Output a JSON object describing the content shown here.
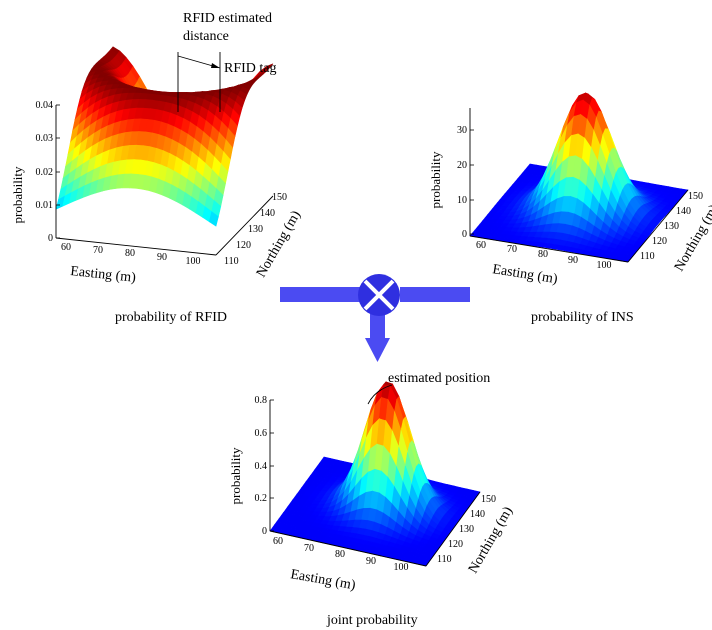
{
  "annotations": {
    "rfid_estimated_distance": [
      "RFID estimated",
      "distance"
    ],
    "rfid_tag": "RFID tag",
    "estimated_position": "estimated position"
  },
  "fusion": {
    "operator": "multiply (⊗)",
    "colors": {
      "pipe": "#4b4bf2",
      "operator_fill": "#2f2fe0",
      "operator_cross": "#ffffff"
    }
  },
  "colormap": "jet",
  "chart_data": [
    {
      "type": "surface",
      "caption": "probability of RFID",
      "xlabel": "Easting (m)",
      "ylabel": "Northing (m)",
      "zlabel": "probability",
      "x_ticks": [
        "60",
        "70",
        "80",
        "90",
        "100"
      ],
      "y_ticks": [
        "110",
        "120",
        "130",
        "140",
        "150"
      ],
      "z_ticks": [
        "0",
        "0.01",
        "0.02",
        "0.03",
        "0.04"
      ],
      "zlim": [
        0,
        0.04
      ],
      "shape": "ring",
      "peak_value": 0.04,
      "ring_center": {
        "easting": 80,
        "northing": 150
      },
      "ring_radius_m": 27
    },
    {
      "type": "surface",
      "caption": "probability of INS",
      "xlabel": "Easting (m)",
      "ylabel": "Northing (m)",
      "zlabel": "probability",
      "x_ticks": [
        "60",
        "70",
        "80",
        "90",
        "100"
      ],
      "y_ticks": [
        "110",
        "120",
        "130",
        "140",
        "150"
      ],
      "z_ticks": [
        "0",
        "10",
        "20",
        "30"
      ],
      "zlim": [
        0,
        37
      ],
      "shape": "gaussian",
      "peak_value": 35,
      "peak": {
        "easting": 82,
        "northing": 130
      }
    },
    {
      "type": "surface",
      "caption": "joint probability",
      "xlabel": "Easting (m)",
      "ylabel": "Northing (m)",
      "zlabel": "probability",
      "x_ticks": [
        "60",
        "70",
        "80",
        "90",
        "100"
      ],
      "y_ticks": [
        "110",
        "120",
        "130",
        "140",
        "150"
      ],
      "z_ticks": [
        "0",
        "0.2",
        "0.4",
        "0.6",
        "0.8"
      ],
      "zlim": [
        0,
        0.8
      ],
      "shape": "gaussian",
      "peak_value": 0.78,
      "peak": {
        "easting": 83,
        "northing": 133
      }
    }
  ]
}
